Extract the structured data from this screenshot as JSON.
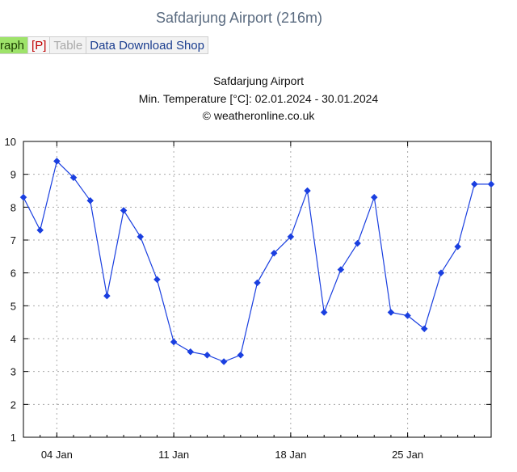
{
  "site_title": "Safdarjung Airport (216m)",
  "tabs": [
    {
      "label": "raph"
    },
    {
      "label": "[P]"
    },
    {
      "label": "Table"
    },
    {
      "label": "Data Download Shop"
    }
  ],
  "colors": {
    "series": "#1a3fe0",
    "grid": "#aaaaaa",
    "active_tab": "#9ee36a"
  },
  "chart_data": {
    "type": "line",
    "title": "Safdarjung Airport",
    "subtitle": "Min. Temperature [°C]: 02.01.2024 - 30.01.2024",
    "credit": "© weatheronline.co.uk",
    "xlabel": "",
    "ylabel": "",
    "x": [
      "2024-01-02",
      "2024-01-03",
      "2024-01-04",
      "2024-01-05",
      "2024-01-06",
      "2024-01-07",
      "2024-01-08",
      "2024-01-09",
      "2024-01-10",
      "2024-01-11",
      "2024-01-12",
      "2024-01-13",
      "2024-01-14",
      "2024-01-15",
      "2024-01-16",
      "2024-01-17",
      "2024-01-18",
      "2024-01-19",
      "2024-01-20",
      "2024-01-21",
      "2024-01-22",
      "2024-01-23",
      "2024-01-24",
      "2024-01-25",
      "2024-01-26",
      "2024-01-27",
      "2024-01-28",
      "2024-01-29",
      "2024-01-30"
    ],
    "series": [
      {
        "values": [
          8.3,
          7.3,
          9.4,
          8.9,
          8.2,
          5.3,
          7.9,
          7.1,
          5.8,
          3.9,
          3.6,
          3.5,
          3.3,
          3.5,
          5.7,
          6.6,
          7.1,
          8.5,
          4.8,
          6.1,
          6.9,
          8.3,
          4.8,
          4.7,
          4.3,
          6.0,
          6.8,
          8.7,
          8.7
        ]
      }
    ],
    "xlim": [
      "2024-01-02",
      "2024-01-30"
    ],
    "ylim": [
      1,
      10
    ],
    "yticks": [
      1,
      2,
      3,
      4,
      5,
      6,
      7,
      8,
      9,
      10
    ],
    "xticks": [
      {
        "date": "2024-01-04",
        "label": "04 Jan"
      },
      {
        "date": "2024-01-11",
        "label": "11 Jan"
      },
      {
        "date": "2024-01-18",
        "label": "18 Jan"
      },
      {
        "date": "2024-01-25",
        "label": "25 Jan"
      }
    ],
    "grid": true,
    "marker": "diamond"
  }
}
